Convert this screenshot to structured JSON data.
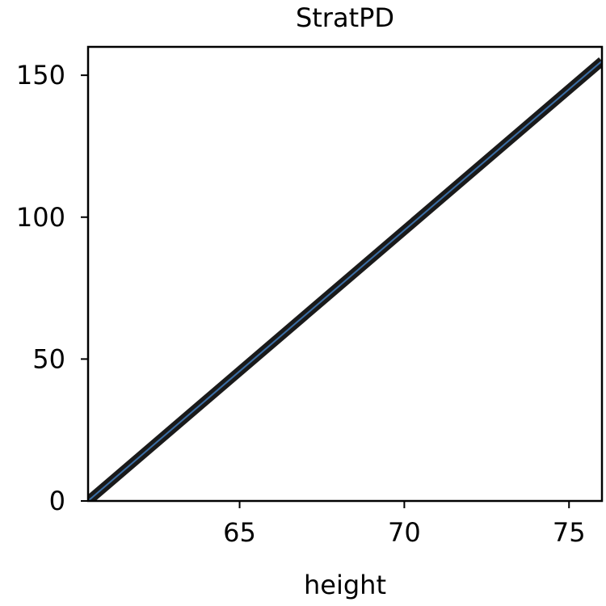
{
  "chart_data": {
    "type": "line",
    "title": "StratPD",
    "xlabel": "height",
    "ylabel": "",
    "xlim": [
      60.4,
      76.0
    ],
    "ylim": [
      0,
      160
    ],
    "xticks": [
      65,
      70,
      75
    ],
    "yticks": [
      0,
      50,
      100,
      150
    ],
    "grid": false,
    "series": [
      {
        "style": "thick-black-band-with-thin-center-line",
        "band_color": "#1a1a1a",
        "line_color": "#3b6ea5",
        "x": [
          60.4,
          76.0
        ],
        "y": [
          0,
          155
        ]
      }
    ]
  }
}
